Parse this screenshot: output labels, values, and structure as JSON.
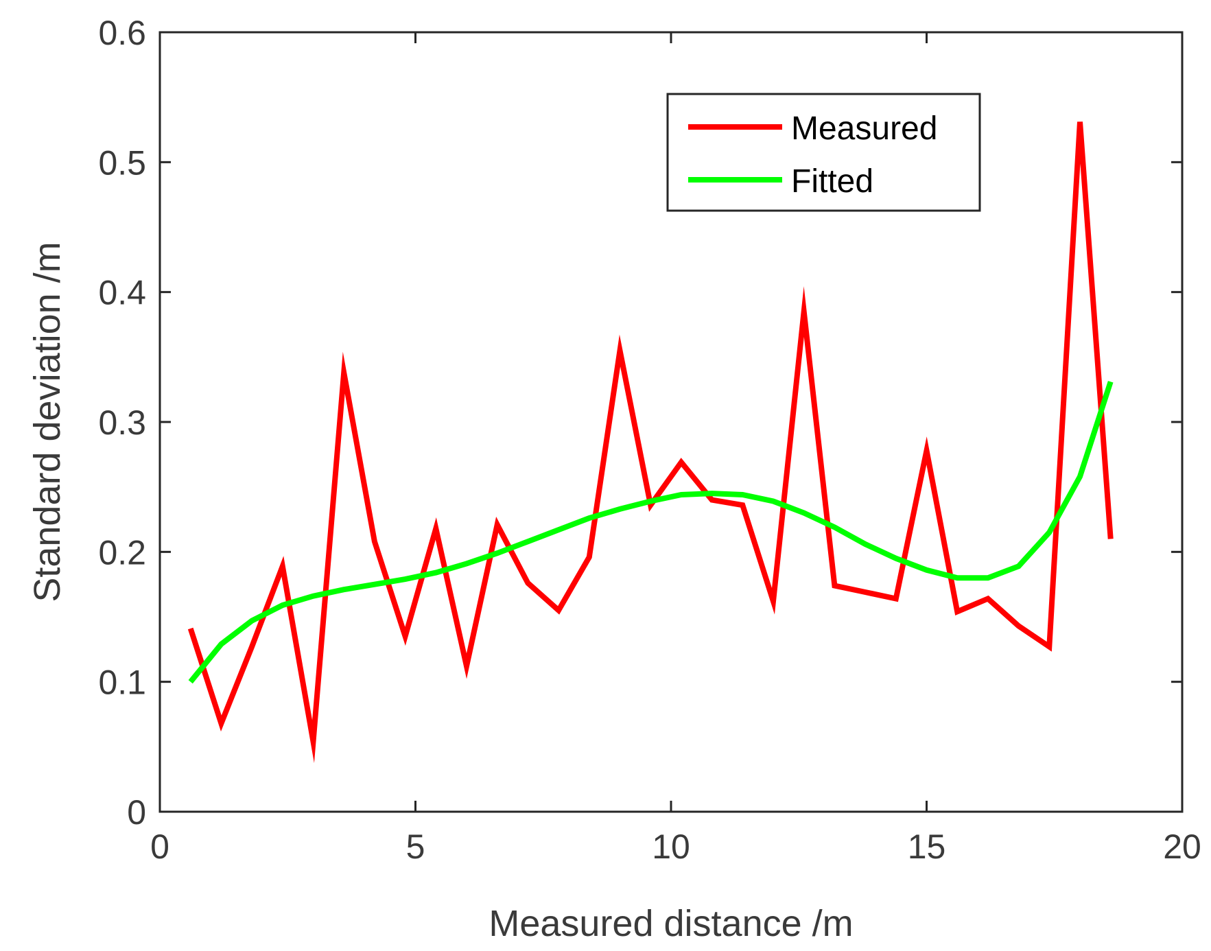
{
  "chart_data": {
    "type": "line",
    "title": "",
    "xlabel": "Measured distance /m",
    "ylabel": "Standard deviation /m",
    "xlim": [
      0,
      20
    ],
    "ylim": [
      0,
      0.6
    ],
    "xticks": [
      0,
      5,
      10,
      15,
      20
    ],
    "xtick_labels": [
      "0",
      "5",
      "10",
      "15",
      "20"
    ],
    "yticks": [
      0,
      0.1,
      0.2,
      0.3,
      0.4,
      0.5,
      0.6
    ],
    "ytick_labels": [
      "0",
      "0.1",
      "0.2",
      "0.3",
      "0.4",
      "0.5",
      "0.6"
    ],
    "grid": false,
    "legend_position": "top-right",
    "series": [
      {
        "name": "Measured",
        "color": "#ff0000",
        "x": [
          0.6,
          1.2,
          1.8,
          2.4,
          3.0,
          3.6,
          4.2,
          4.8,
          5.4,
          6.0,
          6.6,
          7.2,
          7.8,
          8.4,
          9.0,
          9.6,
          10.2,
          10.8,
          11.4,
          12.0,
          12.6,
          13.2,
          13.8,
          14.4,
          15.0,
          15.6,
          16.2,
          16.8,
          17.4,
          18.0,
          18.6
        ],
        "values": [
          0.141,
          0.068,
          0.127,
          0.189,
          0.054,
          0.338,
          0.208,
          0.135,
          0.218,
          0.112,
          0.221,
          0.176,
          0.155,
          0.196,
          0.355,
          0.236,
          0.269,
          0.24,
          0.236,
          0.162,
          0.385,
          0.174,
          0.169,
          0.164,
          0.278,
          0.154,
          0.164,
          0.143,
          0.127,
          0.531,
          0.21
        ]
      },
      {
        "name": "Fitted",
        "color": "#00ff00",
        "x": [
          0.6,
          1.2,
          1.8,
          2.4,
          3.0,
          3.6,
          4.2,
          4.8,
          5.4,
          6.0,
          6.6,
          7.2,
          7.8,
          8.4,
          9.0,
          9.6,
          10.2,
          10.8,
          11.4,
          12.0,
          12.6,
          13.2,
          13.8,
          14.4,
          15.0,
          15.6,
          16.2,
          16.8,
          17.4,
          18.0,
          18.6
        ],
        "values": [
          0.1,
          0.129,
          0.147,
          0.159,
          0.166,
          0.171,
          0.175,
          0.179,
          0.184,
          0.191,
          0.199,
          0.208,
          0.217,
          0.226,
          0.233,
          0.239,
          0.244,
          0.245,
          0.244,
          0.239,
          0.23,
          0.219,
          0.206,
          0.195,
          0.186,
          0.18,
          0.18,
          0.189,
          0.215,
          0.258,
          0.331
        ]
      }
    ]
  }
}
